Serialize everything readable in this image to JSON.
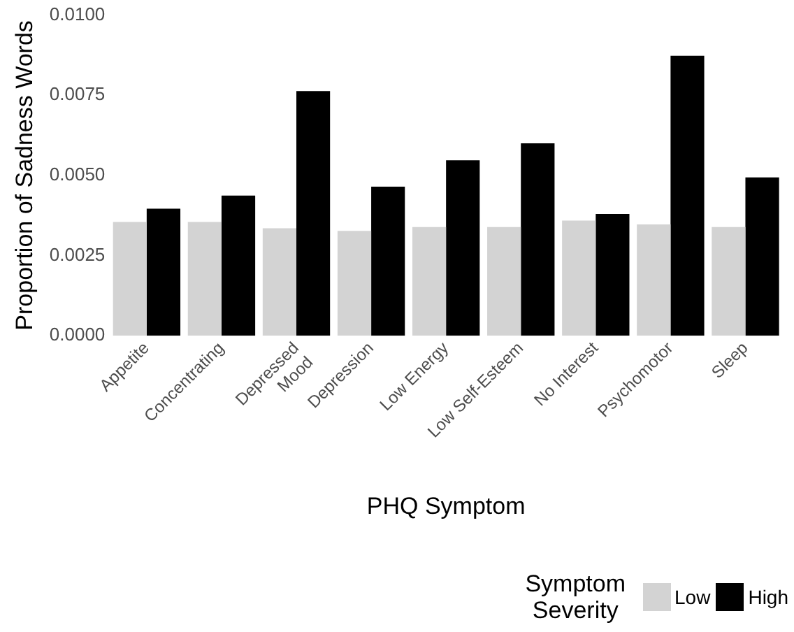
{
  "chart_data": {
    "type": "bar",
    "xlabel": "PHQ Symptom",
    "ylabel": "Proportion of Sadness Words",
    "legend_title": "Symptom\nSeverity",
    "categories": [
      "Appetite",
      "Concentrating",
      "Depressed\nMood",
      "Depression",
      "Low Energy",
      "Low Self-Esteem",
      "No Interest",
      "Psychomotor",
      "Sleep"
    ],
    "series": [
      {
        "name": "Low",
        "color": "#d3d3d3",
        "values": [
          0.00355,
          0.00355,
          0.00335,
          0.00327,
          0.00339,
          0.00339,
          0.00359,
          0.00347,
          0.00339
        ]
      },
      {
        "name": "High",
        "color": "#000000",
        "values": [
          0.00396,
          0.00437,
          0.00763,
          0.00465,
          0.00547,
          0.006,
          0.0038,
          0.00873,
          0.00494
        ]
      }
    ],
    "ylim": [
      0,
      0.01
    ],
    "yticks": [
      {
        "value": 0,
        "label": "0.0000"
      },
      {
        "value": 0.0025,
        "label": "0.0025"
      },
      {
        "value": 0.005,
        "label": "0.0050"
      },
      {
        "value": 0.0075,
        "label": "0.0075"
      },
      {
        "value": 0.01,
        "label": "0.0100"
      }
    ],
    "grid": false,
    "legend": "bottom right"
  }
}
